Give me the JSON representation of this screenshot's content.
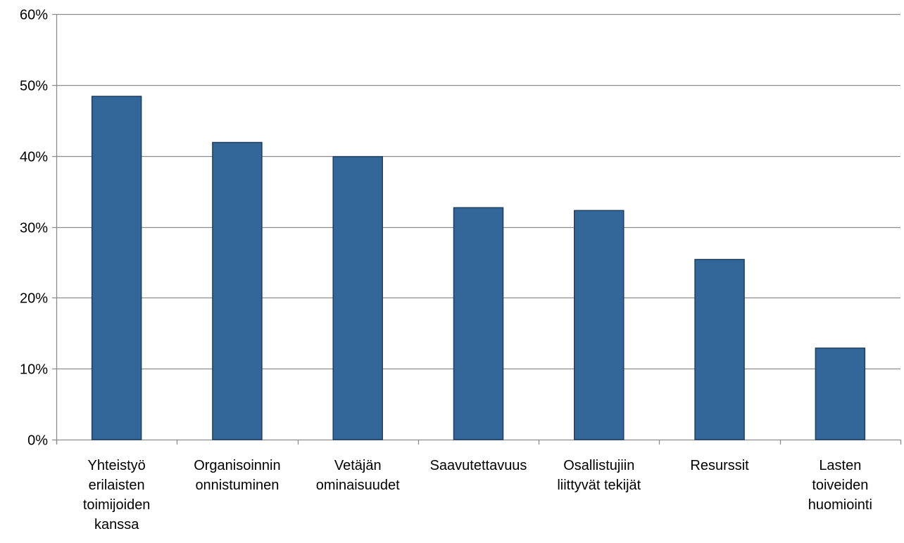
{
  "chart_data": {
    "type": "bar",
    "title": "",
    "xlabel": "",
    "ylabel": "",
    "categories": [
      [
        "Yhteistyö",
        "erilaisten",
        "toimijoiden",
        "kanssa"
      ],
      [
        "Organisoinnin",
        "onnistuminen"
      ],
      [
        "Vetäjän",
        "ominaisuudet"
      ],
      [
        "Saavutettavuus"
      ],
      [
        "Osallistujiin",
        "liittyvät tekijät"
      ],
      [
        "Resurssit"
      ],
      [
        "Lasten",
        "toiveiden",
        "huomiointi"
      ]
    ],
    "series": [
      {
        "values": [
          48.4,
          41.9,
          39.9,
          32.7,
          32.3,
          25.4,
          12.9
        ],
        "color": "#336699"
      }
    ],
    "ylim": [
      0,
      60
    ],
    "yticks": [
      0,
      10,
      20,
      30,
      40,
      50,
      60
    ],
    "ytick_labels": [
      "0%",
      "10%",
      "20%",
      "30%",
      "40%",
      "50%",
      "60%"
    ],
    "grid": true,
    "legend": "none"
  }
}
